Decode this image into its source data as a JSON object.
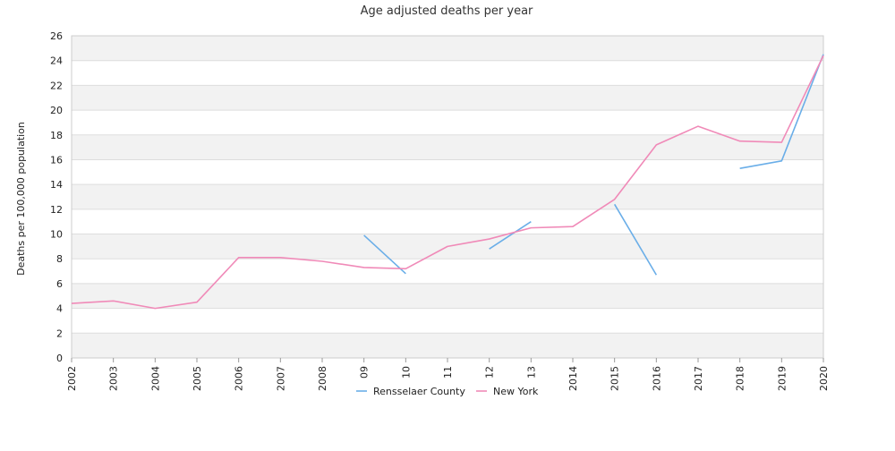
{
  "chart_data": {
    "type": "line",
    "title": "Age adjusted deaths per year",
    "xlabel": "",
    "ylabel": "Deaths per 100,000 population",
    "categories": [
      "2002",
      "2003",
      "2004",
      "2005",
      "2006",
      "2007",
      "2008",
      "09",
      "10",
      "11",
      "12",
      "13",
      "2014",
      "2015",
      "2016",
      "2017",
      "2018",
      "2019",
      "2020"
    ],
    "ylim": [
      0,
      26
    ],
    "yticks": [
      0,
      2,
      4,
      6,
      8,
      10,
      12,
      14,
      16,
      18,
      20,
      22,
      24,
      26
    ],
    "grid": "alternating horizontal bands",
    "legend_position": "bottom-center",
    "series": [
      {
        "name": "Rensselaer County",
        "color": "#6aaee8",
        "values": [
          null,
          null,
          null,
          null,
          null,
          null,
          null,
          9.9,
          6.8,
          null,
          8.8,
          11.0,
          null,
          12.4,
          6.7,
          null,
          15.3,
          15.9,
          24.5
        ]
      },
      {
        "name": "New York",
        "color": "#f08ab8",
        "values": [
          4.4,
          4.6,
          4.0,
          4.5,
          8.1,
          8.1,
          7.8,
          7.3,
          7.2,
          9.0,
          9.6,
          10.5,
          10.6,
          12.8,
          17.2,
          18.7,
          17.5,
          17.4,
          24.4
        ]
      }
    ]
  }
}
